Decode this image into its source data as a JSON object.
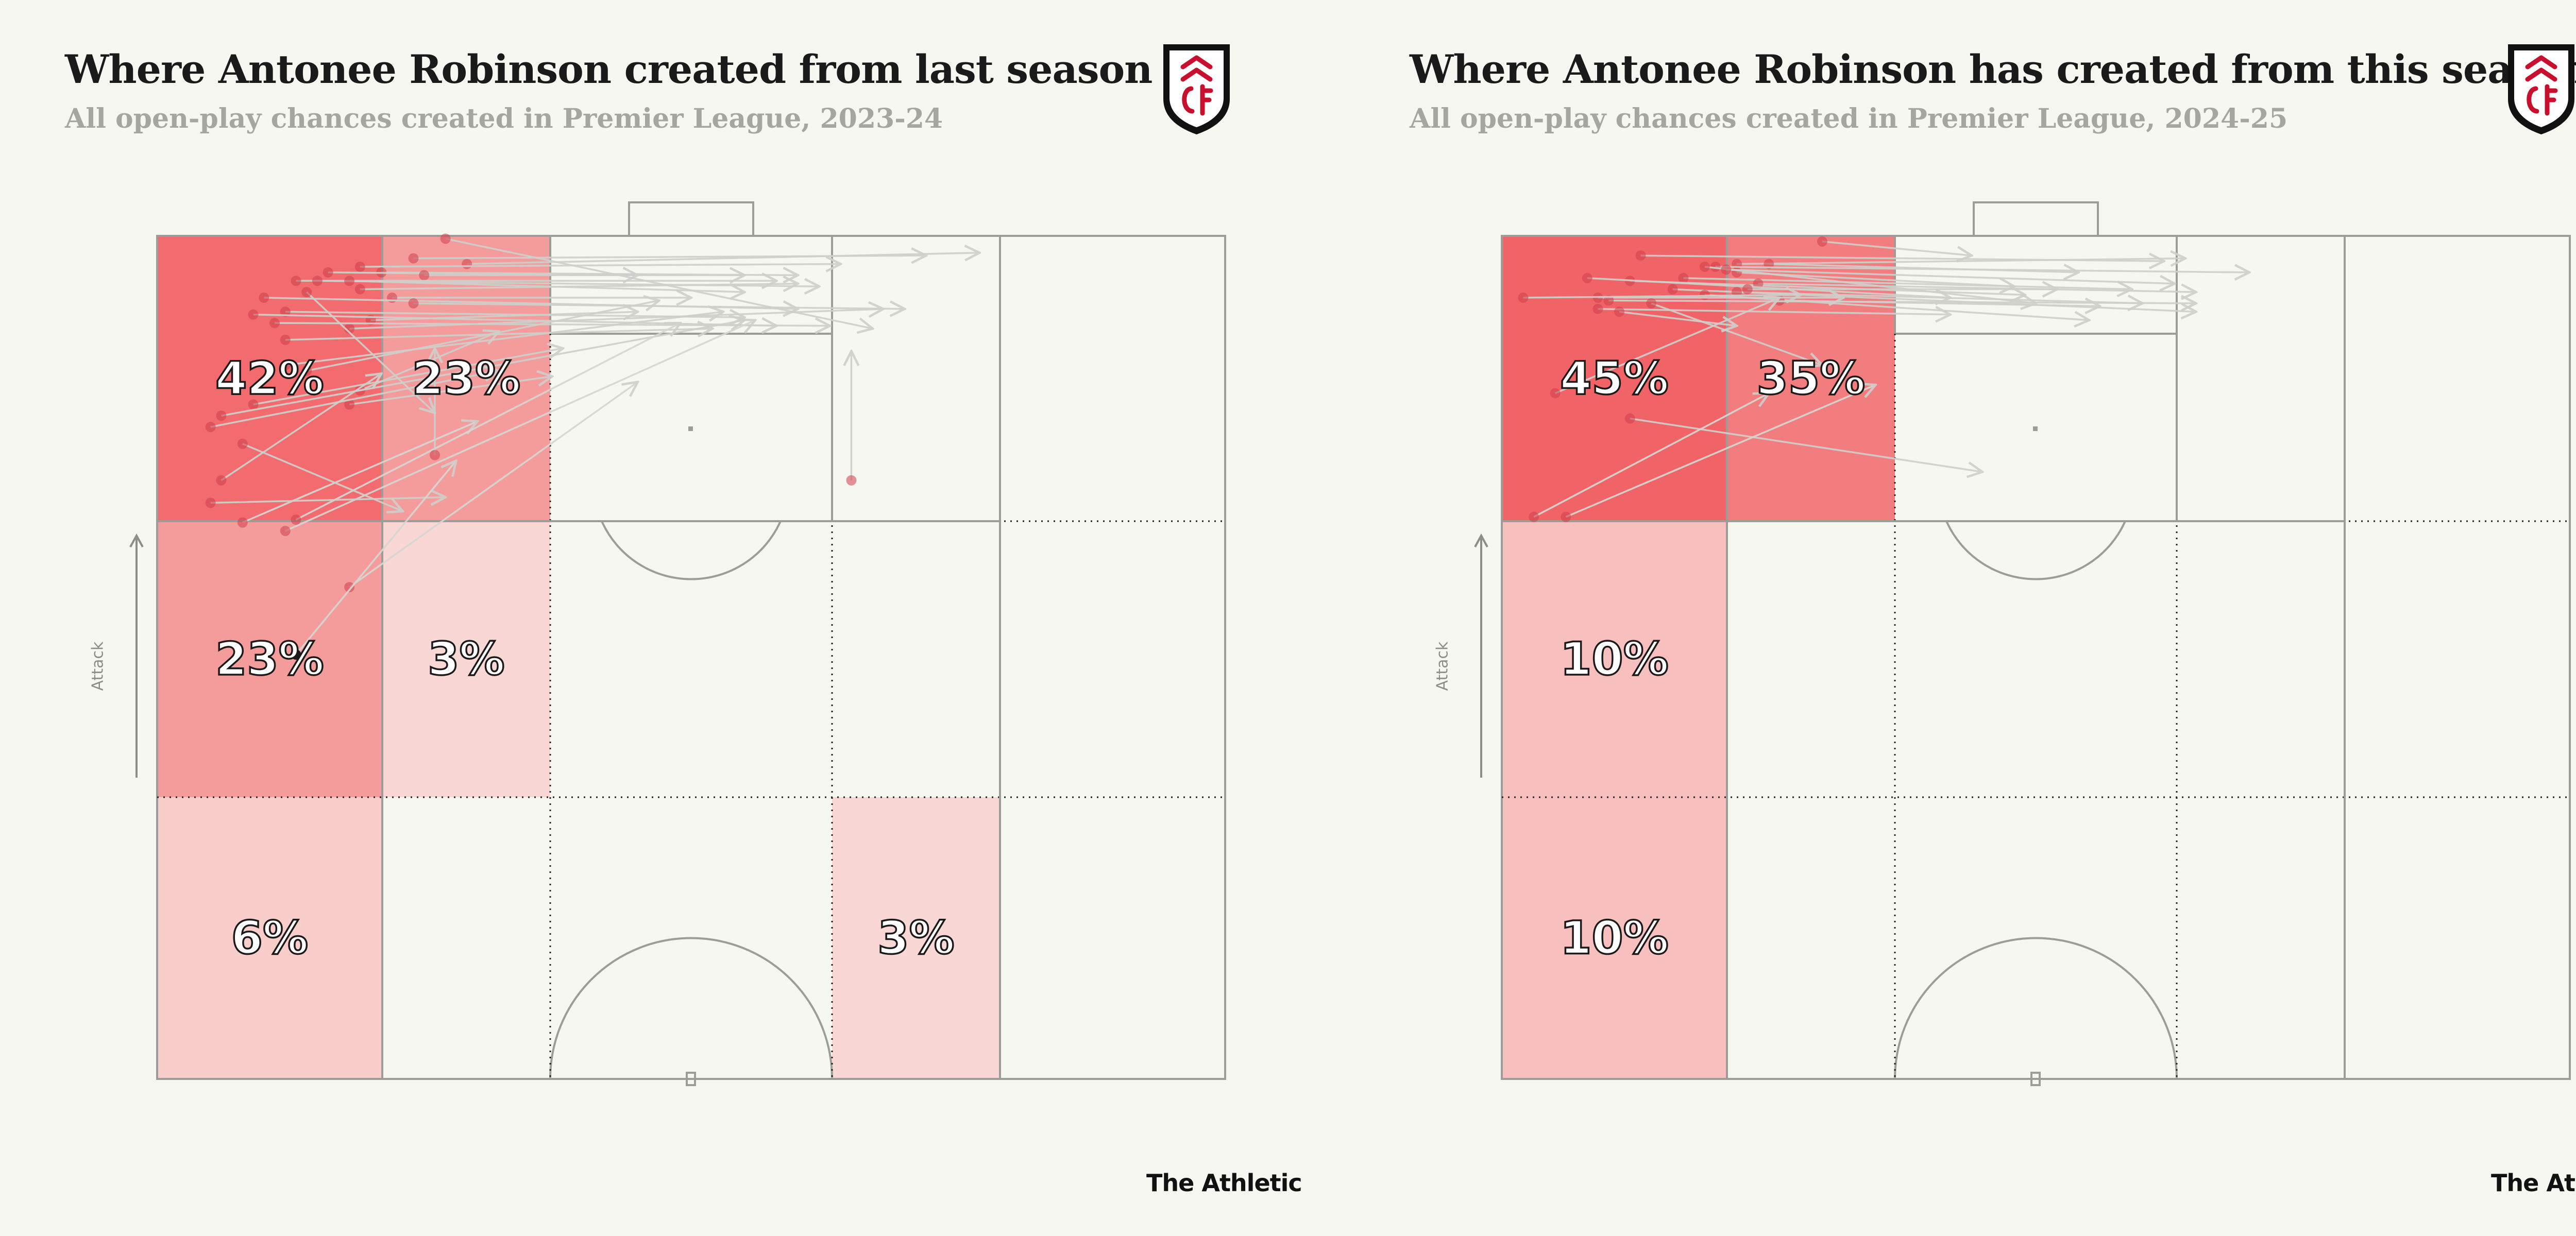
{
  "brand": "The Athletic",
  "attack_label": "Attack",
  "chart_data": [
    {
      "type": "heatmap",
      "title": "Where Antonee Robinson created from last season",
      "subtitle": "All open-play chances created in Premier League, 2023-24",
      "zones": [
        {
          "row": 0,
          "col": 0,
          "pct": 42,
          "label": "42%"
        },
        {
          "row": 0,
          "col": 1,
          "pct": 23,
          "label": "23%"
        },
        {
          "row": 1,
          "col": 0,
          "pct": 23,
          "label": "23%"
        },
        {
          "row": 1,
          "col": 1,
          "pct": 3,
          "label": "3%"
        },
        {
          "row": 2,
          "col": 0,
          "pct": 6,
          "label": "6%"
        },
        {
          "row": 2,
          "col": 3,
          "pct": 3,
          "label": "3%"
        }
      ],
      "passes": [
        [
          0.27,
          0.01,
          0.67,
          0.33
        ],
        [
          0.24,
          0.08,
          0.72,
          0.07
        ],
        [
          0.29,
          0.1,
          0.77,
          0.06
        ],
        [
          0.19,
          0.11,
          0.64,
          0.1
        ],
        [
          0.21,
          0.13,
          0.6,
          0.14
        ],
        [
          0.16,
          0.13,
          0.45,
          0.14
        ],
        [
          0.25,
          0.14,
          0.55,
          0.14
        ],
        [
          0.13,
          0.16,
          0.58,
          0.16
        ],
        [
          0.15,
          0.16,
          0.62,
          0.18
        ],
        [
          0.18,
          0.16,
          0.55,
          0.2
        ],
        [
          0.19,
          0.19,
          0.6,
          0.17
        ],
        [
          0.22,
          0.22,
          0.5,
          0.22
        ],
        [
          0.1,
          0.22,
          0.6,
          0.26
        ],
        [
          0.24,
          0.24,
          0.7,
          0.26
        ],
        [
          0.2,
          0.3,
          0.45,
          0.27
        ],
        [
          0.12,
          0.27,
          0.55,
          0.29
        ],
        [
          0.18,
          0.33,
          0.68,
          0.26
        ],
        [
          0.09,
          0.28,
          0.58,
          0.32
        ],
        [
          0.11,
          0.31,
          0.63,
          0.32
        ],
        [
          0.12,
          0.37,
          0.52,
          0.33
        ],
        [
          0.14,
          0.2,
          0.26,
          0.63
        ],
        [
          0.12,
          0.46,
          0.53,
          0.27
        ],
        [
          0.14,
          0.48,
          0.47,
          0.23
        ],
        [
          0.19,
          0.55,
          0.32,
          0.34
        ],
        [
          0.18,
          0.6,
          0.37,
          0.5
        ],
        [
          0.09,
          0.6,
          0.38,
          0.4
        ],
        [
          0.06,
          0.64,
          0.55,
          0.3
        ],
        [
          0.05,
          0.68,
          0.32,
          0.48
        ],
        [
          0.06,
          0.87,
          0.21,
          0.49
        ],
        [
          0.08,
          1.02,
          0.3,
          0.66
        ],
        [
          0.12,
          1.05,
          0.56,
          0.3
        ],
        [
          0.18,
          1.25,
          0.45,
          0.52
        ],
        [
          0.13,
          1.01,
          0.49,
          0.31
        ],
        [
          0.05,
          0.95,
          0.27,
          0.93
        ],
        [
          0.08,
          0.74,
          0.23,
          0.98
        ],
        [
          0.13,
          1.49,
          0.28,
          0.8
        ],
        [
          0.65,
          0.87,
          0.65,
          0.41
        ],
        [
          0.26,
          0.78,
          0.26,
          0.4
        ]
      ]
    },
    {
      "type": "heatmap",
      "title": "Where Antonee Robinson has created from this season",
      "subtitle": "All open-play chances created in Premier League, 2024-25",
      "zones": [
        {
          "row": 0,
          "col": 0,
          "pct": 45,
          "label": "45%"
        },
        {
          "row": 0,
          "col": 1,
          "pct": 35,
          "label": "35%"
        },
        {
          "row": 1,
          "col": 0,
          "pct": 10,
          "label": "10%"
        },
        {
          "row": 2,
          "col": 0,
          "pct": 10,
          "label": "10%"
        }
      ],
      "passes": [
        [
          0.3,
          0.02,
          0.44,
          0.07
        ],
        [
          0.13,
          0.07,
          0.62,
          0.09
        ],
        [
          0.22,
          0.1,
          0.64,
          0.08
        ],
        [
          0.25,
          0.1,
          0.54,
          0.13
        ],
        [
          0.22,
          0.13,
          0.48,
          0.18
        ],
        [
          0.2,
          0.11,
          0.7,
          0.13
        ],
        [
          0.19,
          0.11,
          0.5,
          0.24
        ],
        [
          0.21,
          0.12,
          0.63,
          0.17
        ],
        [
          0.17,
          0.15,
          0.59,
          0.19
        ],
        [
          0.12,
          0.16,
          0.49,
          0.21
        ],
        [
          0.24,
          0.17,
          0.65,
          0.2
        ],
        [
          0.08,
          0.15,
          0.42,
          0.22
        ],
        [
          0.16,
          0.19,
          0.65,
          0.27
        ],
        [
          0.22,
          0.2,
          0.6,
          0.24
        ],
        [
          0.23,
          0.19,
          0.52,
          0.19
        ],
        [
          0.19,
          0.21,
          0.55,
          0.3
        ],
        [
          0.26,
          0.23,
          0.56,
          0.25
        ],
        [
          0.09,
          0.22,
          0.32,
          0.22
        ],
        [
          0.1,
          0.23,
          0.65,
          0.24
        ],
        [
          0.02,
          0.22,
          0.28,
          0.21
        ],
        [
          0.09,
          0.26,
          0.42,
          0.28
        ],
        [
          0.11,
          0.27,
          0.22,
          0.32
        ],
        [
          0.14,
          0.24,
          0.3,
          0.46
        ],
        [
          0.05,
          0.56,
          0.26,
          0.22
        ],
        [
          0.12,
          0.65,
          0.45,
          0.84
        ],
        [
          0.03,
          1.0,
          0.25,
          0.56
        ],
        [
          0.06,
          1.0,
          0.35,
          0.53
        ]
      ]
    }
  ]
}
